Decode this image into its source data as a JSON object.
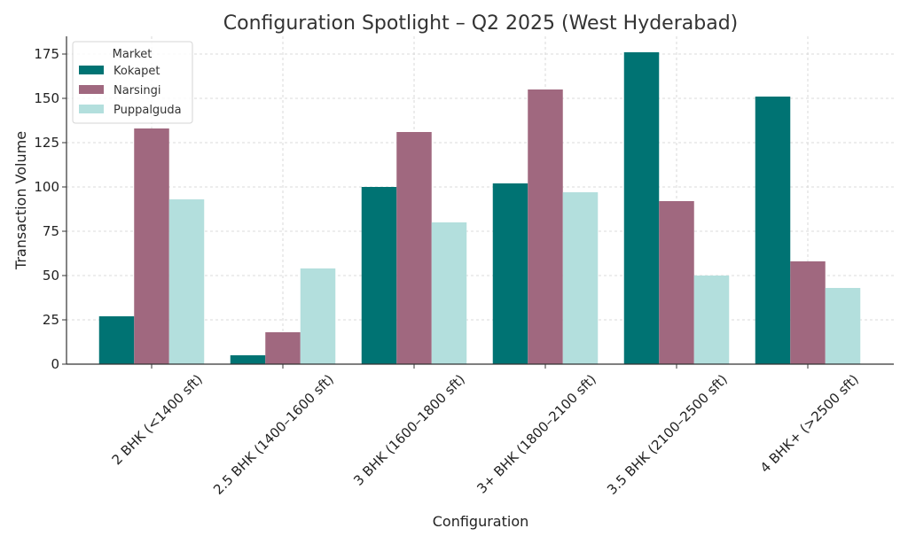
{
  "chart_data": {
    "type": "bar",
    "title": "Configuration Spotlight – Q2 2025 (West Hyderabad)",
    "xlabel": "Configuration",
    "ylabel": "Transaction Volume",
    "categories": [
      "2 BHK (<1400 sft)",
      "2.5 BHK (1400–1600 sft)",
      "3 BHK (1600–1800 sft)",
      "3+ BHK (1800–2100 sft)",
      "3.5 BHK (2100–2500 sft)",
      "4 BHK+ (>2500 sft)"
    ],
    "series": [
      {
        "name": "Kokapet",
        "color": "#007373",
        "values": [
          27,
          5,
          100,
          102,
          176,
          151
        ]
      },
      {
        "name": "Narsingi",
        "color": "#A0687F",
        "values": [
          133,
          18,
          131,
          155,
          92,
          58
        ]
      },
      {
        "name": "Puppalguda",
        "color": "#B3DFDD",
        "values": [
          93,
          54,
          80,
          97,
          50,
          43
        ]
      }
    ],
    "ylim": [
      0,
      185
    ],
    "yticks": [
      0,
      25,
      50,
      75,
      100,
      125,
      150,
      175
    ],
    "grid": true,
    "legend": {
      "title": "Market",
      "placement": "top-left"
    }
  }
}
